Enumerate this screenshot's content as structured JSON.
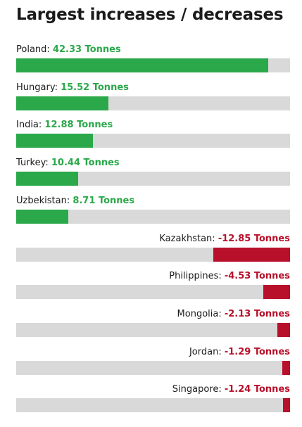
{
  "title": "Largest increases / decreases",
  "colors": {
    "positive": "#2aa84a",
    "negative": "#b8102a",
    "track": "#d9d9d9"
  },
  "chart_data": {
    "type": "bar",
    "orientation": "horizontal",
    "unit": "Tonnes",
    "categories": [
      "Poland",
      "Hungary",
      "India",
      "Turkey",
      "Uzbekistan",
      "Kazakhstan",
      "Philippines",
      "Mongolia",
      "Jordan",
      "Singapore"
    ],
    "values": [
      42.33,
      15.52,
      12.88,
      10.44,
      8.71,
      -12.85,
      -4.53,
      -2.13,
      -1.29,
      -1.24
    ],
    "value_labels": [
      "42.33 Tonnes",
      "15.52 Tonnes",
      "12.88 Tonnes",
      "10.44 Tonnes",
      "8.71 Tonnes",
      "-12.85 Tonnes",
      "-4.53 Tonnes",
      "-2.13 Tonnes",
      "-1.29 Tonnes",
      "-1.24 Tonnes"
    ],
    "scale_max": 46
  }
}
